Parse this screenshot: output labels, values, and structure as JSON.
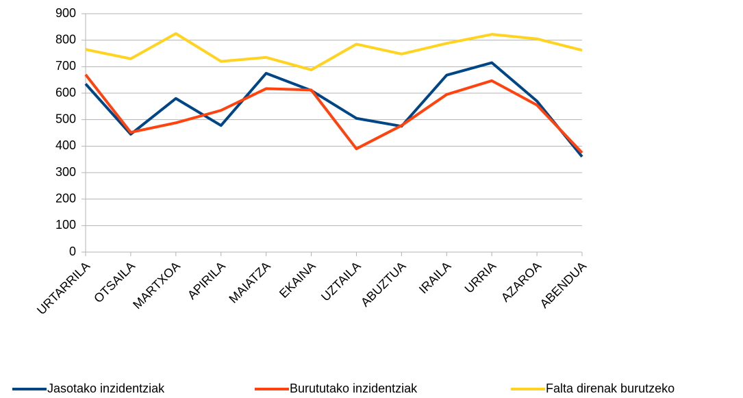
{
  "chart_data": {
    "type": "line",
    "categories": [
      "URTARRILA",
      "OTSAILA",
      "MARTXOA",
      "APIRILA",
      "MAIATZA",
      "EKAINA",
      "UZTAILA",
      "ABUZTUA",
      "IRAILA",
      "URRIA",
      "AZAROA",
      "ABENDUA"
    ],
    "series": [
      {
        "name": "Jasotako inzidentziak",
        "color": "#004586",
        "values": [
          635,
          445,
          580,
          478,
          675,
          610,
          505,
          475,
          668,
          715,
          570,
          360
        ]
      },
      {
        "name": "Burututako inzidentziak",
        "color": "#ff420e",
        "values": [
          670,
          452,
          488,
          535,
          617,
          612,
          390,
          478,
          595,
          647,
          555,
          375
        ]
      },
      {
        "name": "Falta direnak burutzeko",
        "color": "#ffd320",
        "values": [
          765,
          730,
          825,
          720,
          735,
          688,
          785,
          748,
          788,
          822,
          805,
          762
        ]
      }
    ],
    "ylim": [
      0,
      900
    ],
    "yticks": [
      0,
      100,
      200,
      300,
      400,
      500,
      600,
      700,
      800,
      900
    ],
    "grid": true,
    "legend": "bottom"
  }
}
